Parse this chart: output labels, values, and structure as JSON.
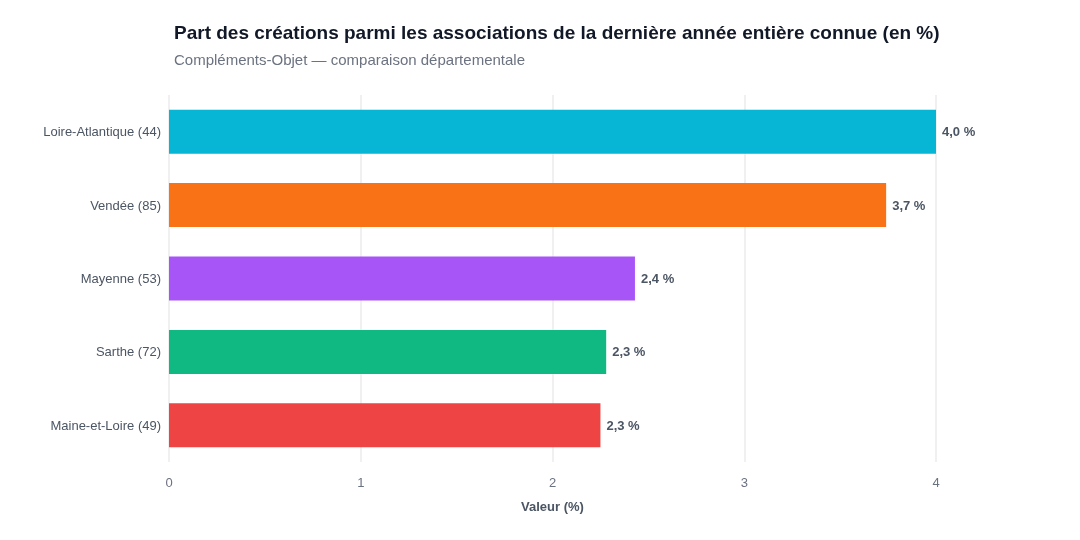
{
  "chart_data": {
    "type": "bar",
    "orientation": "horizontal",
    "title": "Part des créations parmi les associations de la dernière année entière connue (en %)",
    "subtitle": "Compléments-Objet — comparaison départementale",
    "xlabel": "Valeur (%)",
    "categories": [
      "Loire-Atlantique (44)",
      "Vendée (85)",
      "Mayenne (53)",
      "Sarthe (72)",
      "Maine-et-Loire (49)"
    ],
    "values": [
      4.0,
      3.74,
      2.43,
      2.28,
      2.25
    ],
    "colors": [
      "#06b6d4",
      "#f97316",
      "#a855f7",
      "#10b981",
      "#ef4444"
    ],
    "value_labels": [
      "4,0 %",
      "3,7 %",
      "2,4 %",
      "2,3 %",
      "2,3 %"
    ],
    "xlim": [
      0,
      4
    ],
    "xticks": [
      0,
      1,
      2,
      3,
      4
    ],
    "grid": "x"
  }
}
